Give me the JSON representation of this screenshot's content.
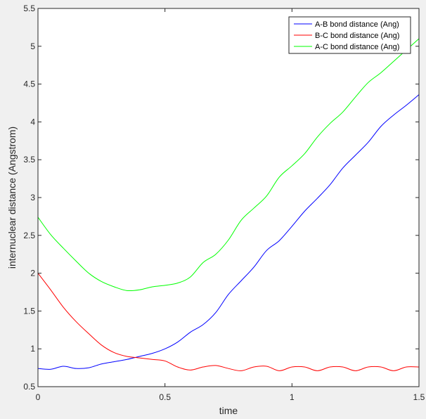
{
  "chart_data": {
    "type": "line",
    "title": "",
    "xlabel": "time",
    "ylabel": "internuclear distance (Angstrom)",
    "xlim": [
      0,
      1.5
    ],
    "ylim": [
      0.5,
      5.5
    ],
    "xticks": [
      0,
      0.5,
      1,
      1.5
    ],
    "xtick_labels": [
      "0",
      "0.5",
      "1",
      "1.5"
    ],
    "yticks": [
      0.5,
      1,
      1.5,
      2,
      2.5,
      3,
      3.5,
      4,
      4.5,
      5,
      5.5
    ],
    "ytick_labels": [
      "0.5",
      "1",
      "1.5",
      "2",
      "2.5",
      "3",
      "3.5",
      "4",
      "4.5",
      "5",
      "5.5"
    ],
    "grid": false,
    "legend_position": "top-right",
    "series": [
      {
        "name": "A-B bond distance (Ang)",
        "color": "#0000ff",
        "x": [
          0,
          0.05,
          0.1,
          0.15,
          0.2,
          0.25,
          0.3,
          0.35,
          0.4,
          0.45,
          0.5,
          0.55,
          0.6,
          0.65,
          0.7,
          0.75,
          0.8,
          0.85,
          0.9,
          0.95,
          1.0,
          1.05,
          1.1,
          1.15,
          1.2,
          1.25,
          1.3,
          1.35,
          1.4,
          1.45,
          1.5
        ],
        "y": [
          0.74,
          0.73,
          0.77,
          0.74,
          0.75,
          0.8,
          0.83,
          0.86,
          0.9,
          0.94,
          1.0,
          1.09,
          1.22,
          1.32,
          1.48,
          1.72,
          1.9,
          2.08,
          2.3,
          2.43,
          2.62,
          2.82,
          2.99,
          3.17,
          3.39,
          3.56,
          3.73,
          3.94,
          4.09,
          4.22,
          4.36
        ]
      },
      {
        "name": "B-C bond distance (Ang)",
        "color": "#ff0000",
        "x": [
          0,
          0.05,
          0.1,
          0.15,
          0.2,
          0.25,
          0.3,
          0.35,
          0.4,
          0.45,
          0.5,
          0.55,
          0.6,
          0.65,
          0.7,
          0.75,
          0.8,
          0.85,
          0.9,
          0.95,
          1.0,
          1.05,
          1.1,
          1.15,
          1.2,
          1.25,
          1.3,
          1.35,
          1.4,
          1.45,
          1.5
        ],
        "y": [
          2.0,
          1.78,
          1.55,
          1.36,
          1.2,
          1.05,
          0.95,
          0.9,
          0.88,
          0.86,
          0.84,
          0.76,
          0.72,
          0.76,
          0.78,
          0.74,
          0.71,
          0.76,
          0.77,
          0.71,
          0.76,
          0.76,
          0.71,
          0.76,
          0.76,
          0.71,
          0.76,
          0.76,
          0.71,
          0.76,
          0.76
        ]
      },
      {
        "name": "A-C bond distance (Ang)",
        "color": "#00ff00",
        "x": [
          0,
          0.05,
          0.1,
          0.15,
          0.2,
          0.25,
          0.3,
          0.35,
          0.4,
          0.45,
          0.5,
          0.55,
          0.6,
          0.65,
          0.7,
          0.75,
          0.8,
          0.85,
          0.9,
          0.95,
          1.0,
          1.05,
          1.1,
          1.15,
          1.2,
          1.25,
          1.3,
          1.35,
          1.4,
          1.45,
          1.5
        ],
        "y": [
          2.74,
          2.51,
          2.33,
          2.16,
          2.0,
          1.89,
          1.82,
          1.77,
          1.78,
          1.82,
          1.84,
          1.87,
          1.95,
          2.14,
          2.25,
          2.44,
          2.7,
          2.86,
          3.02,
          3.27,
          3.42,
          3.58,
          3.8,
          3.98,
          4.13,
          4.33,
          4.52,
          4.65,
          4.8,
          4.95,
          5.1
        ]
      }
    ]
  }
}
